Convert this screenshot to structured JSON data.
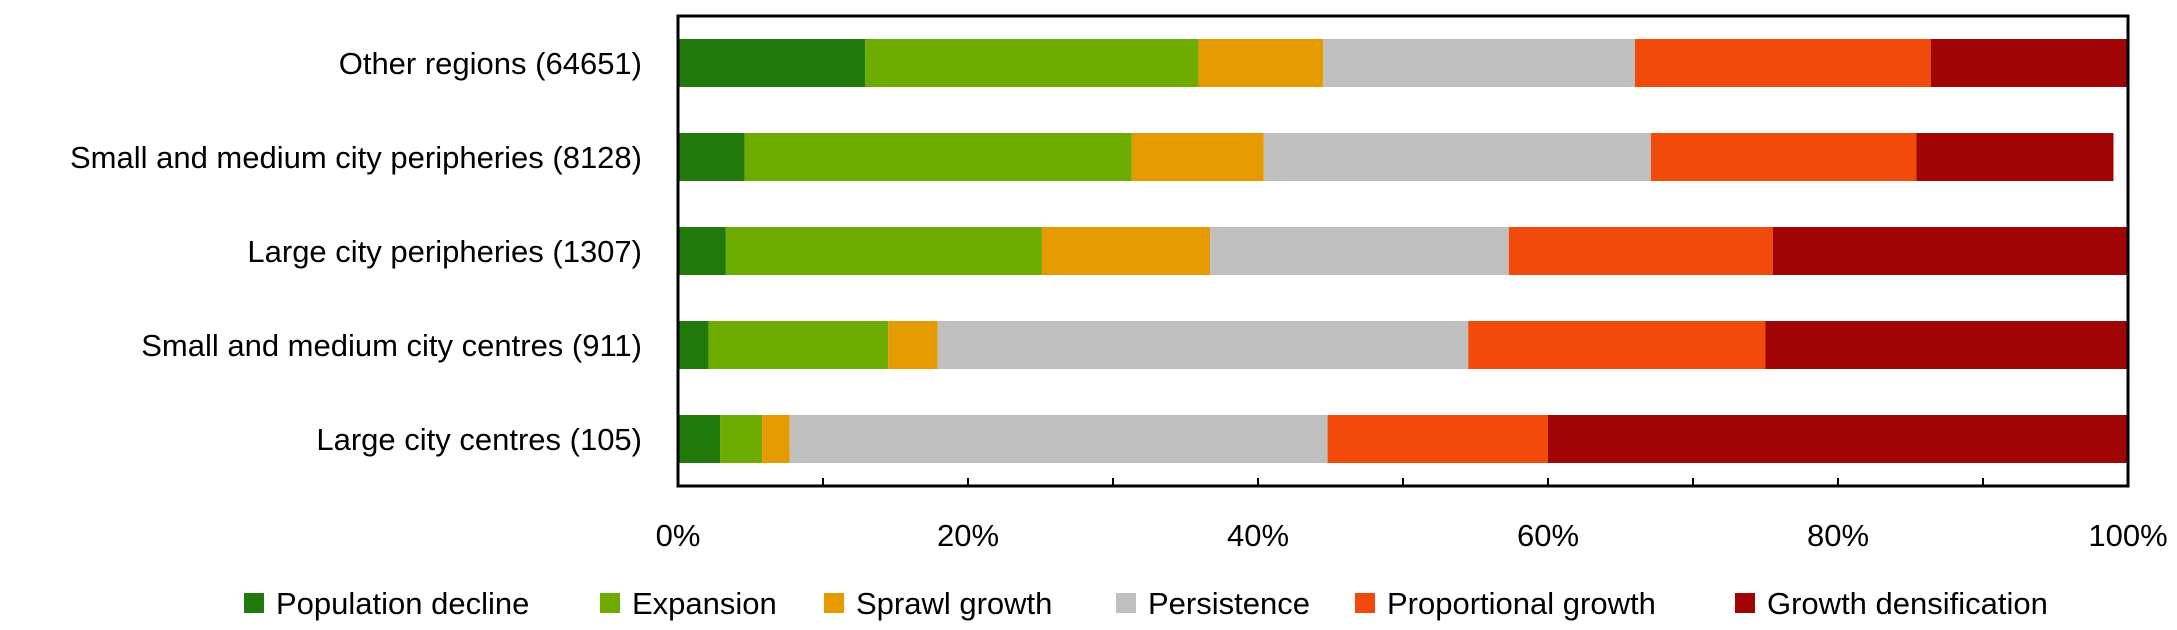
{
  "chart_data": {
    "type": "bar",
    "orientation": "horizontal",
    "stacked": "percent",
    "categories": [
      "Other regions (64651)",
      "Small and medium city peripheries (8128)",
      "Large city peripheries (1307)",
      "Small and medium city centres (911)",
      "Large city centres (105)"
    ],
    "series": [
      {
        "name": "Population decline",
        "color": "#217A0B",
        "values": [
          12.9,
          4.6,
          3.3,
          2.1,
          2.9
        ]
      },
      {
        "name": "Expansion",
        "color": "#6EAB00",
        "values": [
          23.0,
          26.7,
          21.8,
          12.4,
          2.9
        ]
      },
      {
        "name": "Sprawl growth",
        "color": "#E59B00",
        "values": [
          8.6,
          9.1,
          11.6,
          3.4,
          1.9
        ]
      },
      {
        "name": "Persistence",
        "color": "#BFBFBF",
        "values": [
          21.5,
          26.7,
          20.6,
          36.6,
          37.1
        ]
      },
      {
        "name": "Proportional growth",
        "color": "#F24A0A",
        "values": [
          20.4,
          18.3,
          18.2,
          20.5,
          15.2
        ]
      },
      {
        "name": "Growth densification",
        "color": "#A00404",
        "values": [
          13.6,
          13.6,
          24.5,
          25.0,
          40.0
        ]
      }
    ],
    "xlim": [
      0,
      100
    ],
    "x_ticks": [
      "0%",
      "20%",
      "40%",
      "60%",
      "80%",
      "100%"
    ],
    "grid": false,
    "legend_position": "bottom"
  }
}
